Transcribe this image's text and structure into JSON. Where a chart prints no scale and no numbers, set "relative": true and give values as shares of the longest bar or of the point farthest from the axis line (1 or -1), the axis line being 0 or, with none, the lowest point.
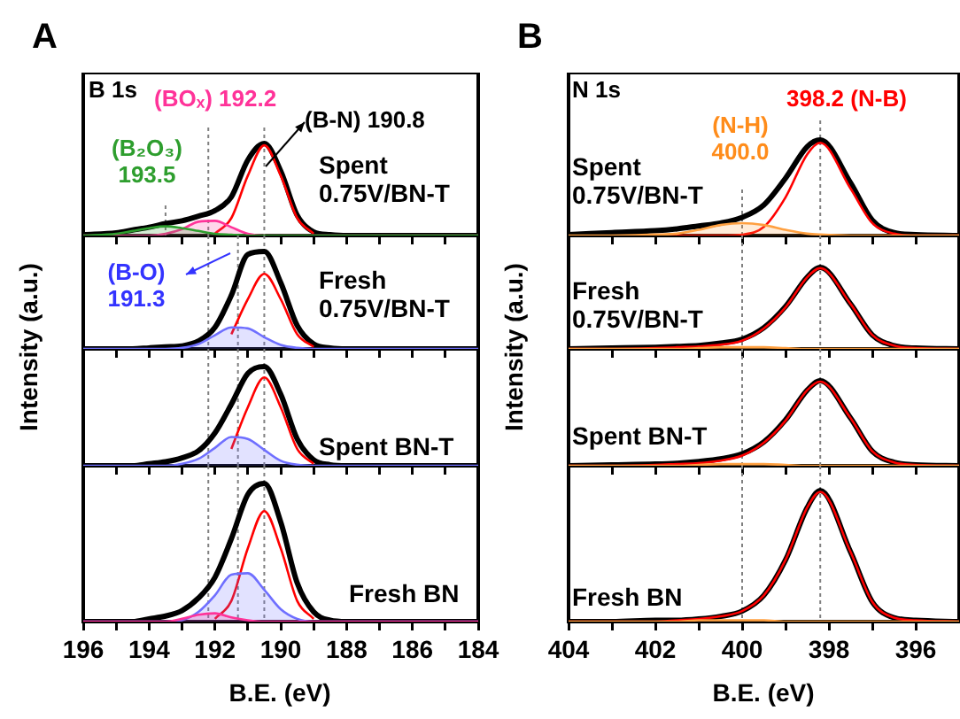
{
  "chart_data": [
    {
      "type": "line",
      "relative": true,
      "marker": "none",
      "title": "Spent 0.75V/BN-T",
      "xlim": [
        196,
        184
      ],
      "xticks": [
        196,
        {
          "value": 195,
          "label": null
        },
        194,
        {
          "value": 193,
          "label": null
        },
        192,
        {
          "value": 191,
          "label": null
        },
        190,
        {
          "value": 189,
          "label": null
        },
        188,
        {
          "value": 187,
          "label": null
        },
        186,
        {
          "value": 185,
          "label": null
        },
        184
      ],
      "tick_labels": false,
      "annotations": [
        "A",
        "B 1s",
        "(BOₓ) 192.2",
        "(B-N) 190.8",
        "(B₂O₃) 193.5"
      ],
      "ref_lines": [
        {
          "axis": "x",
          "value": 193.5,
          "color": "#808080",
          "line_style": "dotted"
        },
        {
          "axis": "x",
          "value": 192.2,
          "color": "#808080",
          "line_style": "dotted"
        },
        {
          "axis": "x",
          "value": 190.5,
          "color": "#808080",
          "line_style": "dotted"
        }
      ],
      "x": [
        196,
        195,
        194.5,
        194,
        193.5,
        193,
        192.5,
        192,
        191.5,
        191,
        190.5,
        190,
        189.5,
        189,
        188.5,
        188,
        187,
        186,
        185,
        184
      ],
      "series": [
        {
          "type": "area",
          "color": "#2e9e2e",
          "values": [
            0,
            0.02,
            0.05,
            0.08,
            0.1,
            0.08,
            0.05,
            0.02,
            0.01,
            0,
            0,
            0,
            0,
            0,
            0,
            0,
            0,
            0,
            0,
            0
          ]
        },
        {
          "type": "area",
          "color": "#ff3399",
          "values": [
            0,
            0,
            0,
            0,
            0.02,
            0.07,
            0.15,
            0.16,
            0.09,
            0.02,
            0,
            0,
            0,
            0,
            0,
            0,
            0,
            0,
            0,
            0
          ]
        },
        {
          "color": "#ff0000",
          "values": [
            null,
            null,
            null,
            null,
            null,
            null,
            null,
            0.02,
            0.19,
            0.65,
            0.98,
            0.65,
            0.19,
            0.02,
            null,
            null,
            null,
            null,
            null,
            null
          ]
        },
        {
          "color": "#000000",
          "values": [
            0.01,
            0.03,
            0.06,
            0.09,
            0.13,
            0.16,
            0.21,
            0.27,
            0.42,
            0.82,
            1.0,
            0.7,
            0.22,
            0.04,
            0.01,
            0,
            0,
            0,
            0,
            0
          ]
        }
      ]
    },
    {
      "type": "line",
      "relative": true,
      "marker": "none",
      "title": "Fresh 0.75V/BN-T",
      "xlim": [
        196,
        184
      ],
      "xticks": [
        196,
        {
          "value": 195,
          "label": null
        },
        194,
        {
          "value": 193,
          "label": null
        },
        192,
        {
          "value": 191,
          "label": null
        },
        190,
        {
          "value": 189,
          "label": null
        },
        188,
        {
          "value": 187,
          "label": null
        },
        186,
        {
          "value": 185,
          "label": null
        },
        184
      ],
      "tick_labels": false,
      "annotations": [
        "(B-O) 191.3"
      ],
      "ref_lines": [
        {
          "axis": "x",
          "value": 192.2,
          "color": "#808080",
          "line_style": "dotted"
        },
        {
          "axis": "x",
          "value": 191.3,
          "color": "#808080",
          "line_style": "dotted"
        },
        {
          "axis": "x",
          "value": 190.5,
          "color": "#808080",
          "line_style": "dotted"
        }
      ],
      "x": [
        196,
        195,
        194.5,
        194,
        193.5,
        193,
        192.5,
        192,
        191.5,
        191,
        190.5,
        190,
        189.5,
        189,
        188.5,
        188,
        187,
        186,
        185,
        184
      ],
      "series": [
        {
          "type": "area",
          "color": "#6f6fff",
          "values": [
            0,
            0,
            0,
            0,
            0,
            0.01,
            0.05,
            0.14,
            0.22,
            0.21,
            0.12,
            0.04,
            0.01,
            0,
            0,
            0,
            0,
            0,
            0,
            0
          ]
        },
        {
          "color": "#ff0000",
          "values": [
            null,
            null,
            null,
            null,
            null,
            null,
            null,
            null,
            0.15,
            0.51,
            0.77,
            0.51,
            0.15,
            0.02,
            null,
            null,
            null,
            null,
            null,
            null
          ]
        },
        {
          "color": "#000000",
          "values": [
            0,
            0,
            0,
            0.01,
            0.02,
            0.03,
            0.08,
            0.22,
            0.55,
            0.97,
            1.0,
            0.68,
            0.24,
            0.05,
            0.01,
            0,
            0,
            0,
            0,
            0
          ]
        }
      ]
    },
    {
      "type": "line",
      "relative": true,
      "marker": "none",
      "title": "Spent BN-T",
      "xlim": [
        196,
        184
      ],
      "xticks": [
        196,
        {
          "value": 195,
          "label": null
        },
        194,
        {
          "value": 193,
          "label": null
        },
        192,
        {
          "value": 191,
          "label": null
        },
        190,
        {
          "value": 189,
          "label": null
        },
        188,
        {
          "value": 187,
          "label": null
        },
        186,
        {
          "value": 185,
          "label": null
        },
        184
      ],
      "tick_labels": false,
      "ref_lines": [
        {
          "axis": "x",
          "value": 192.2,
          "color": "#808080",
          "line_style": "dotted"
        },
        {
          "axis": "x",
          "value": 191.3,
          "color": "#808080",
          "line_style": "dotted"
        },
        {
          "axis": "x",
          "value": 190.5,
          "color": "#808080",
          "line_style": "dotted"
        }
      ],
      "x": [
        196,
        195,
        194.5,
        194,
        193.5,
        193,
        192.5,
        192,
        191.5,
        191,
        190.5,
        190,
        189.5,
        189,
        188.5,
        188,
        187,
        186,
        185,
        184
      ],
      "series": [
        {
          "type": "area",
          "color": "#6f6fff",
          "values": [
            0,
            0,
            0,
            0,
            0,
            0.02,
            0.07,
            0.18,
            0.29,
            0.27,
            0.16,
            0.05,
            0.01,
            0,
            0,
            0,
            0,
            0,
            0,
            0
          ]
        },
        {
          "color": "#ff0000",
          "values": [
            null,
            null,
            null,
            null,
            null,
            null,
            null,
            null,
            0.17,
            0.59,
            0.89,
            0.59,
            0.17,
            0.02,
            null,
            null,
            null,
            null,
            null,
            null
          ]
        },
        {
          "color": "#000000",
          "values": [
            0,
            0,
            0,
            0.02,
            0.04,
            0.08,
            0.15,
            0.33,
            0.62,
            0.93,
            1.0,
            0.72,
            0.27,
            0.06,
            0.01,
            0,
            0,
            0,
            0,
            0
          ]
        }
      ]
    },
    {
      "type": "line",
      "relative": true,
      "marker": "none",
      "title": "Fresh BN",
      "xlabel": "B.E. (eV)",
      "ylabel": "Intensity (a.u.)",
      "xlim": [
        196,
        184
      ],
      "xticks": [
        196,
        {
          "value": 195,
          "label": null
        },
        194,
        {
          "value": 193,
          "label": null
        },
        192,
        {
          "value": 191,
          "label": null
        },
        190,
        {
          "value": 189,
          "label": null
        },
        188,
        {
          "value": 187,
          "label": null
        },
        186,
        {
          "value": 185,
          "label": null
        },
        184
      ],
      "ref_lines": [
        {
          "axis": "x",
          "value": 192.2,
          "color": "#808080",
          "line_style": "dotted"
        },
        {
          "axis": "x",
          "value": 191.3,
          "color": "#808080",
          "line_style": "dotted"
        },
        {
          "axis": "x",
          "value": 190.5,
          "color": "#808080",
          "line_style": "dotted"
        }
      ],
      "x": [
        196,
        195,
        194.5,
        194,
        193.5,
        193,
        192.5,
        192,
        191.5,
        191,
        190.5,
        190,
        189.5,
        189,
        188.5,
        188,
        187,
        186,
        185,
        184
      ],
      "series": [
        {
          "type": "area",
          "color": "#ff3399",
          "values": [
            0,
            0,
            0,
            0,
            0,
            0.02,
            0.05,
            0.06,
            0.03,
            0.01,
            0,
            0,
            0,
            0,
            0,
            0,
            0,
            0,
            0,
            0
          ]
        },
        {
          "type": "area",
          "color": "#6f6fff",
          "values": [
            0,
            0,
            0,
            0,
            0,
            0.01,
            0.07,
            0.19,
            0.34,
            0.35,
            0.23,
            0.09,
            0.02,
            0,
            0,
            0,
            0,
            0,
            0,
            0
          ]
        },
        {
          "color": "#ff0000",
          "values": [
            null,
            null,
            null,
            null,
            null,
            null,
            null,
            0.02,
            0.15,
            0.53,
            0.8,
            0.53,
            0.15,
            0.02,
            null,
            null,
            null,
            null,
            null,
            null
          ]
        },
        {
          "color": "#000000",
          "values": [
            0,
            0,
            0,
            0.02,
            0.04,
            0.08,
            0.17,
            0.32,
            0.6,
            0.92,
            1.0,
            0.72,
            0.28,
            0.07,
            0.01,
            0,
            0,
            0,
            0,
            0
          ]
        }
      ]
    },
    {
      "type": "line",
      "relative": true,
      "marker": "none",
      "title": "Spent 0.75V/BN-T",
      "xlim": [
        404,
        395
      ],
      "xticks": [
        404,
        {
          "value": 403,
          "label": null
        },
        402,
        {
          "value": 401,
          "label": null
        },
        400,
        {
          "value": 399,
          "label": null
        },
        398,
        {
          "value": 397,
          "label": null
        },
        396
      ],
      "tick_labels": false,
      "annotations": [
        "B",
        "N 1s",
        "(N-H) 400.0",
        "398.2 (N-B)"
      ],
      "ref_lines": [
        {
          "axis": "x",
          "value": 400.0,
          "color": "#808080",
          "line_style": "dotted"
        },
        {
          "axis": "x",
          "value": 398.2,
          "color": "#808080",
          "line_style": "dotted"
        }
      ],
      "x": [
        404,
        403,
        402,
        401.5,
        401,
        400.5,
        400,
        399.5,
        399,
        398.5,
        398.2,
        397.5,
        397,
        396.5,
        396,
        395
      ],
      "series": [
        {
          "type": "area",
          "color": "#ffa040",
          "values": [
            0,
            0,
            0.01,
            0.02,
            0.06,
            0.11,
            0.13,
            0.11,
            0.06,
            0.02,
            0.01,
            0,
            0,
            0,
            0,
            0
          ]
        },
        {
          "color": "#ff0000",
          "values": [
            null,
            null,
            0,
            0,
            0,
            0,
            0.01,
            0.09,
            0.4,
            0.85,
            0.97,
            0.49,
            0.13,
            0.02,
            0,
            0
          ]
        },
        {
          "color": "#000000",
          "values": [
            0.01,
            0.03,
            0.05,
            0.07,
            0.1,
            0.13,
            0.19,
            0.32,
            0.6,
            0.93,
            1.0,
            0.55,
            0.16,
            0.03,
            0.01,
            0
          ]
        }
      ]
    },
    {
      "type": "line",
      "relative": true,
      "marker": "none",
      "title": "Fresh 0.75V/BN-T",
      "xlim": [
        404,
        395
      ],
      "xticks": [
        404,
        {
          "value": 403,
          "label": null
        },
        402,
        {
          "value": 401,
          "label": null
        },
        400,
        {
          "value": 399,
          "label": null
        },
        398,
        {
          "value": 397,
          "label": null
        },
        396
      ],
      "tick_labels": false,
      "ref_lines": [
        {
          "axis": "x",
          "value": 400.0,
          "color": "#808080",
          "line_style": "dotted"
        },
        {
          "axis": "x",
          "value": 398.2,
          "color": "#808080",
          "line_style": "dotted"
        }
      ],
      "x": [
        404,
        403,
        402,
        401.5,
        401,
        400.5,
        400,
        399.5,
        399,
        398.5,
        398.2,
        397.5,
        397,
        396.5,
        396,
        395
      ],
      "series": [
        {
          "type": "area",
          "color": "#ffa040",
          "values": [
            0,
            0,
            0,
            0,
            0.01,
            0.02,
            0.02,
            0.02,
            0.01,
            0,
            0,
            0,
            0,
            0,
            0,
            0
          ]
        },
        {
          "color": "#ff0000",
          "values": [
            0,
            0,
            0.01,
            0.02,
            0.03,
            0.05,
            0.1,
            0.25,
            0.51,
            0.88,
            0.99,
            0.55,
            0.17,
            0.04,
            0.01,
            0
          ]
        },
        {
          "color": "#000000",
          "values": [
            0,
            0.01,
            0.02,
            0.03,
            0.04,
            0.07,
            0.12,
            0.26,
            0.52,
            0.88,
            1.0,
            0.55,
            0.17,
            0.04,
            0.01,
            0
          ]
        }
      ]
    },
    {
      "type": "line",
      "relative": true,
      "marker": "none",
      "title": "Spent BN-T",
      "xlim": [
        404,
        395
      ],
      "xticks": [
        404,
        {
          "value": 403,
          "label": null
        },
        402,
        {
          "value": 401,
          "label": null
        },
        400,
        {
          "value": 399,
          "label": null
        },
        398,
        {
          "value": 397,
          "label": null
        },
        396
      ],
      "tick_labels": false,
      "ref_lines": [
        {
          "axis": "x",
          "value": 400.0,
          "color": "#808080",
          "line_style": "dotted"
        },
        {
          "axis": "x",
          "value": 398.2,
          "color": "#808080",
          "line_style": "dotted"
        }
      ],
      "x": [
        404,
        403,
        402,
        401.5,
        401,
        400.5,
        400,
        399.5,
        399,
        398.5,
        398.2,
        397.5,
        397,
        396.5,
        396,
        395
      ],
      "series": [
        {
          "type": "area",
          "color": "#ffa040",
          "values": [
            0,
            0,
            0,
            0,
            0.01,
            0.02,
            0.02,
            0.02,
            0.01,
            0,
            0,
            0,
            0,
            0,
            0,
            0
          ]
        },
        {
          "color": "#ff0000",
          "values": [
            0,
            0,
            0.01,
            0.02,
            0.03,
            0.06,
            0.12,
            0.27,
            0.53,
            0.89,
            0.99,
            0.56,
            0.17,
            0.04,
            0.01,
            0
          ]
        },
        {
          "color": "#000000",
          "values": [
            0,
            0.01,
            0.02,
            0.03,
            0.05,
            0.08,
            0.14,
            0.28,
            0.54,
            0.89,
            1.0,
            0.56,
            0.17,
            0.04,
            0.01,
            0
          ]
        }
      ]
    },
    {
      "type": "line",
      "relative": true,
      "marker": "none",
      "title": "Fresh BN",
      "xlabel": "B.E. (eV)",
      "ylabel": "Intensity (a.u.)",
      "xlim": [
        404,
        395
      ],
      "xticks": [
        404,
        {
          "value": 403,
          "label": null
        },
        402,
        {
          "value": 401,
          "label": null
        },
        400,
        {
          "value": 399,
          "label": null
        },
        398,
        {
          "value": 397,
          "label": null
        },
        396
      ],
      "ref_lines": [
        {
          "axis": "x",
          "value": 400.0,
          "color": "#808080",
          "line_style": "dotted"
        },
        {
          "axis": "x",
          "value": 398.2,
          "color": "#808080",
          "line_style": "dotted"
        }
      ],
      "x": [
        404,
        403,
        402,
        401.5,
        401,
        400.5,
        400,
        399.5,
        399,
        398.5,
        398.2,
        397.5,
        397,
        396.5,
        396,
        395
      ],
      "series": [
        {
          "type": "area",
          "color": "#ffa040",
          "values": [
            0,
            0,
            0,
            0,
            0.01,
            0.01,
            0.01,
            0.01,
            0,
            0,
            0,
            0,
            0,
            0,
            0,
            0
          ]
        },
        {
          "color": "#ff0000",
          "values": [
            0,
            0,
            0,
            0.01,
            0.02,
            0.04,
            0.08,
            0.2,
            0.47,
            0.87,
            0.99,
            0.53,
            0.15,
            0.03,
            0.01,
            0
          ]
        },
        {
          "color": "#000000",
          "values": [
            0,
            0,
            0.01,
            0.01,
            0.02,
            0.04,
            0.08,
            0.2,
            0.47,
            0.87,
            1.0,
            0.53,
            0.15,
            0.03,
            0.01,
            0
          ]
        }
      ]
    }
  ]
}
